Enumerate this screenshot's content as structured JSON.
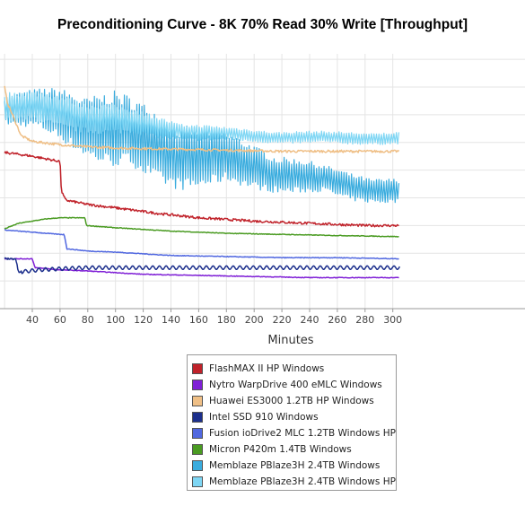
{
  "chart_data": {
    "type": "line",
    "title": "Preconditioning Curve - 8K 70% Read 30% Write [Throughput]",
    "xlabel": "Minutes",
    "ylabel": "",
    "xlim": [
      20,
      305
    ],
    "ylim": [
      0,
      230
    ],
    "x_ticks": [
      40,
      60,
      80,
      100,
      120,
      140,
      160,
      180,
      200,
      220,
      240,
      260,
      280,
      300
    ],
    "y_gridlines": [
      0,
      25,
      50,
      75,
      100,
      125,
      150,
      175,
      200,
      225
    ],
    "grid": true,
    "legend_position": "bottom",
    "series": [
      {
        "name": "FlashMAX II HP Windows",
        "color": "#c0222a",
        "style": "noisy-small",
        "points": [
          [
            20,
            141
          ],
          [
            38,
            138
          ],
          [
            55,
            134
          ],
          [
            60,
            133
          ],
          [
            61,
            106
          ],
          [
            64,
            98
          ],
          [
            80,
            94
          ],
          [
            100,
            91
          ],
          [
            130,
            86
          ],
          [
            160,
            82
          ],
          [
            200,
            79
          ],
          [
            240,
            77
          ],
          [
            280,
            75
          ],
          [
            305,
            75
          ]
        ]
      },
      {
        "name": "Nytro WarpDrive 400 eMLC Windows",
        "color": "#7f1fd6",
        "style": "smooth",
        "points": [
          [
            20,
            45
          ],
          [
            40,
            45
          ],
          [
            42,
            37
          ],
          [
            60,
            35
          ],
          [
            80,
            34
          ],
          [
            120,
            31
          ],
          [
            160,
            30
          ],
          [
            200,
            29
          ],
          [
            240,
            28
          ],
          [
            280,
            28
          ],
          [
            305,
            28
          ]
        ]
      },
      {
        "name": "Huawei ES3000 1.2TB HP Windows",
        "color": "#efbf86",
        "style": "noisy-small",
        "points": [
          [
            20,
            200
          ],
          [
            22,
            186
          ],
          [
            28,
            168
          ],
          [
            32,
            156
          ],
          [
            40,
            151
          ],
          [
            60,
            148
          ],
          [
            80,
            146
          ],
          [
            100,
            145
          ],
          [
            140,
            144
          ],
          [
            180,
            143
          ],
          [
            220,
            142
          ],
          [
            260,
            142
          ],
          [
            305,
            142
          ]
        ]
      },
      {
        "name": "Intel SSD 910 Windows",
        "color": "#1c2f8c",
        "style": "wavy",
        "points": [
          [
            20,
            45
          ],
          [
            28,
            45
          ],
          [
            30,
            33
          ],
          [
            45,
            35
          ],
          [
            60,
            36
          ],
          [
            80,
            37
          ],
          [
            120,
            37
          ],
          [
            160,
            37
          ],
          [
            200,
            37
          ],
          [
            240,
            37
          ],
          [
            280,
            37
          ],
          [
            305,
            37
          ]
        ]
      },
      {
        "name": "Fusion ioDrive2 MLC 1.2TB Windows HP",
        "color": "#5168e0",
        "style": "smooth",
        "points": [
          [
            20,
            71
          ],
          [
            40,
            69
          ],
          [
            60,
            67
          ],
          [
            63,
            67
          ],
          [
            65,
            54
          ],
          [
            80,
            52
          ],
          [
            100,
            51
          ],
          [
            140,
            48
          ],
          [
            180,
            47
          ],
          [
            220,
            46
          ],
          [
            260,
            46
          ],
          [
            305,
            45
          ]
        ]
      },
      {
        "name": "Micron P420m 1.4TB Windows",
        "color": "#4a9b22",
        "style": "smooth",
        "points": [
          [
            20,
            72
          ],
          [
            30,
            77
          ],
          [
            40,
            79
          ],
          [
            50,
            81
          ],
          [
            60,
            82
          ],
          [
            78,
            82
          ],
          [
            79,
            75
          ],
          [
            100,
            73
          ],
          [
            140,
            70
          ],
          [
            180,
            68
          ],
          [
            220,
            67
          ],
          [
            260,
            66
          ],
          [
            305,
            65
          ]
        ]
      },
      {
        "name": "Memblaze PBlaze3H 2.4TB Windows",
        "color": "#3aacde",
        "style": "oscillating",
        "points": [
          [
            20,
            180
          ],
          [
            60,
            176
          ],
          [
            80,
            168
          ],
          [
            100,
            160
          ],
          [
            120,
            150
          ],
          [
            140,
            143
          ],
          [
            160,
            138
          ],
          [
            180,
            133
          ],
          [
            200,
            128
          ],
          [
            240,
            118
          ],
          [
            270,
            110
          ],
          [
            305,
            106
          ]
        ],
        "amplitudes": [
          [
            20,
            12
          ],
          [
            55,
            20
          ],
          [
            100,
            32
          ],
          [
            150,
            28
          ],
          [
            200,
            18
          ],
          [
            250,
            12
          ],
          [
            305,
            10
          ]
        ]
      },
      {
        "name": "Memblaze PBlaze3H 2.4TB Windows HP",
        "color": "#7ed6f4",
        "style": "oscillating",
        "points": [
          [
            20,
            183
          ],
          [
            60,
            178
          ],
          [
            90,
            172
          ],
          [
            120,
            166
          ],
          [
            150,
            160
          ],
          [
            180,
            157
          ],
          [
            220,
            155
          ],
          [
            260,
            154
          ],
          [
            305,
            154
          ]
        ],
        "amplitudes": [
          [
            20,
            12
          ],
          [
            60,
            14
          ],
          [
            100,
            12
          ],
          [
            150,
            7
          ],
          [
            200,
            5
          ],
          [
            305,
            5
          ]
        ]
      }
    ]
  },
  "colors": {
    "grid": "#e4e4e4",
    "axis_line": "#9a9a9a",
    "legend_border": "#999999"
  }
}
